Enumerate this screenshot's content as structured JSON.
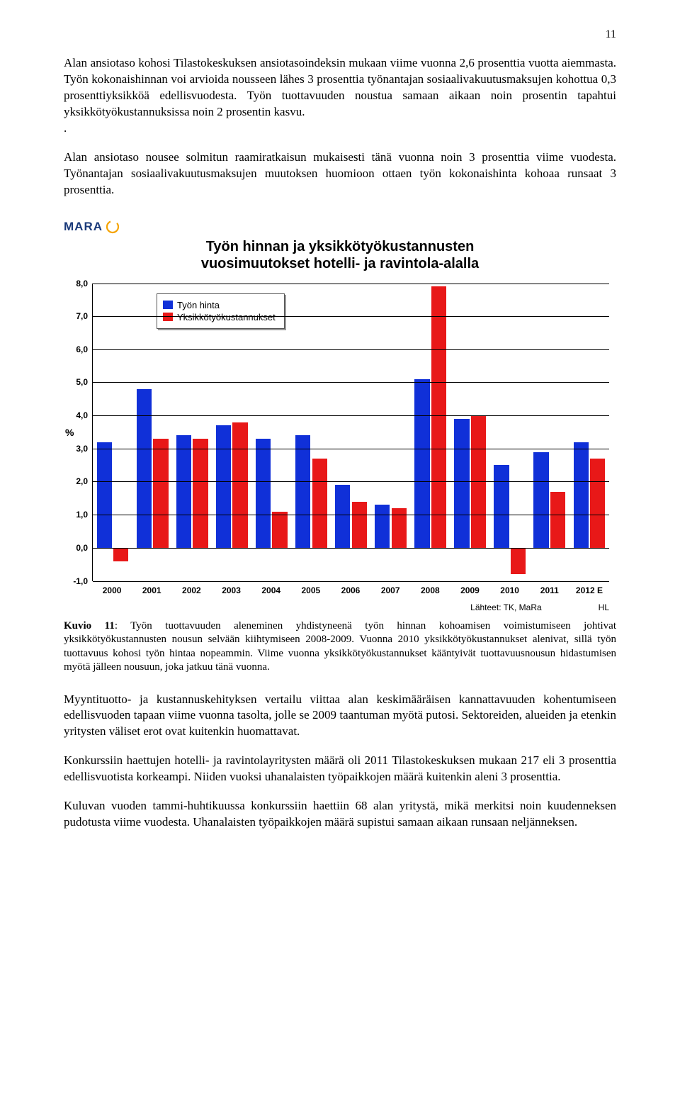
{
  "page_number": "11",
  "paragraphs": {
    "p1": "Alan ansiotaso kohosi Tilastokeskuksen ansiotasoindeksin mukaan viime vuonna 2,6 prosenttia vuotta aiemmasta. Työn kokonaishinnan voi arvioida nousseen lähes 3 prosenttia työnantajan sosiaalivakuutusmaksujen kohottua 0,3 prosenttiyksikköä edellisvuodesta. Työn tuottavuuden noustua samaan aikaan noin prosentin tapahtui yksikkötyökustannuksissa noin 2 prosentin kasvu.",
    "p1b": ".",
    "p2": "Alan ansiotaso nousee solmitun raamiratkaisun mukaisesti tänä vuonna noin 3 prosenttia viime vuodesta. Työnantajan sosiaalivakuutusmaksujen muutoksen huomioon ottaen työn kokonaishinta kohoaa runsaat 3 prosenttia.",
    "p3": "Myyntituotto- ja kustannuskehityksen vertailu viittaa alan keskimääräisen kannattavuuden kohentumiseen edellisvuoden tapaan viime vuonna tasolta, jolle se 2009 taantuman myötä putosi. Sektoreiden, alueiden ja etenkin yritysten väliset erot ovat kuitenkin huomattavat.",
    "p4": "Konkurssiin haettujen hotelli- ja ravintolayritysten määrä oli 2011 Tilastokeskuksen mukaan 217 eli 3 prosenttia edellisvuotista korkeampi. Niiden vuoksi uhanalaisten työpaikkojen määrä kuitenkin aleni 3 prosenttia.",
    "p5": "Kuluvan vuoden tammi-huhtikuussa konkurssiin haettiin 68 alan yritystä, mikä merkitsi noin kuudenneksen pudotusta viime vuodesta. Uhanalaisten työpaikkojen määrä supistui samaan aikaan runsaan neljänneksen."
  },
  "chart": {
    "logo_text": "MARA",
    "logo_accent_color": "#f5a300",
    "title_line1": "Työn hinnan ja yksikkötyökustannusten",
    "title_line2": "vuosimuutokset hotelli- ja ravintola-alalla",
    "y_axis_label": "%",
    "y_ticks": [
      "8,0",
      "7,0",
      "6,0",
      "5,0",
      "4,0",
      "3,0",
      "2,0",
      "1,0",
      "0,0",
      "-1,0"
    ],
    "y_max": 8.0,
    "y_min": -1.0,
    "legend": {
      "series1": "Työn hinta",
      "series2": "Yksikkötyökustannukset"
    },
    "colors": {
      "blue": "#1030d8",
      "red": "#e81818",
      "grid": "#000000",
      "background": "#ffffff"
    },
    "categories": [
      "2000",
      "2001",
      "2002",
      "2003",
      "2004",
      "2005",
      "2006",
      "2007",
      "2008",
      "2009",
      "2010",
      "2011",
      "2012 E"
    ],
    "series1_values": [
      3.2,
      4.8,
      3.4,
      3.7,
      3.3,
      3.4,
      1.9,
      1.3,
      5.1,
      3.9,
      2.5,
      2.9,
      3.2
    ],
    "series2_values": [
      -0.4,
      3.3,
      3.3,
      3.8,
      1.1,
      2.7,
      1.4,
      1.2,
      7.9,
      4.0,
      -0.8,
      1.7,
      2.7
    ],
    "footer_source": "Lähteet: TK, MaRa",
    "footer_right": "HL"
  },
  "caption": {
    "label": "Kuvio 11",
    "text": ": Työn tuottavuuden aleneminen yhdistyneenä työn hinnan kohoamisen voimistumiseen johtivat yksikkötyökustannusten nousun selvään kiihtymiseen 2008-2009. Vuonna 2010 yksikkötyökustannukset alenivat, sillä työn tuottavuus kohosi työn hintaa  nopeammin. Viime vuonna yksikkötyökustannukset kääntyivät tuottavuusnousun hidastumisen myötä jälleen nousuun, joka jatkuu tänä vuonna."
  }
}
